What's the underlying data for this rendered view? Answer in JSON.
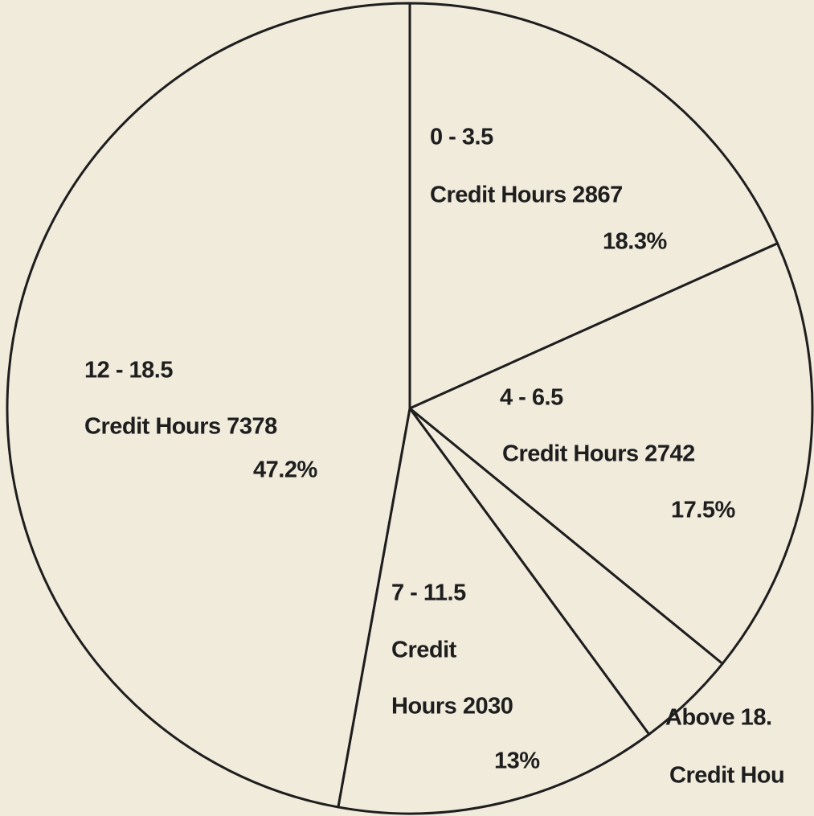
{
  "chart_data": {
    "type": "pie",
    "categories": [
      "0 - 3.5",
      "4 - 6.5",
      "Above 18.",
      "7 - 11.5",
      "12 - 18.5"
    ],
    "values": [
      2867,
      2742,
      630,
      2030,
      7378
    ],
    "value_labels": [
      [
        "Credit Hours 2867"
      ],
      [
        "Credit Hours 2742"
      ],
      [
        "Credit Hou"
      ],
      [
        "Credit",
        "Hours 2030"
      ],
      [
        "Credit Hours 7378"
      ]
    ],
    "percentages": [
      18.3,
      17.5,
      null,
      13,
      47.2
    ],
    "percent_labels": [
      "18.3%",
      "17.5%",
      null,
      "13%",
      "47.2%"
    ],
    "color": "#f1ebdc"
  }
}
